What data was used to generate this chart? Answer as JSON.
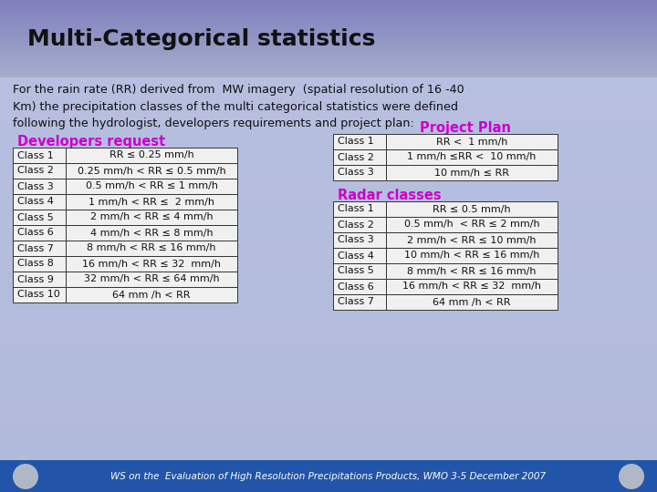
{
  "title": "Multi-Categorical statistics",
  "body_text": "For the rain rate (RR) derived from  MW imagery  (spatial resolution of 16 -40\nKm) the precipitation classes of the multi categorical statistics were defined\nfollowing the hydrologist, developers requirements and project plan:",
  "footer_text": "WS on the  Evaluation of High Resolution Precipitations Products, WMO 3-5 December 2007",
  "dev_request_title": "Developers request",
  "project_plan_title": "Project Plan",
  "radar_classes_title": "Radar classes",
  "dev_rows": [
    [
      "Class 1",
      "RR ≤ 0.25 mm/h"
    ],
    [
      "Class 2",
      "0.25 mm/h < RR ≤ 0.5 mm/h"
    ],
    [
      "Class 3",
      "0.5 mm/h < RR ≤ 1 mm/h"
    ],
    [
      "Class 4",
      "1 mm/h < RR ≤  2 mm/h"
    ],
    [
      "Class 5",
      "2 mm/h < RR ≤ 4 mm/h"
    ],
    [
      "Class 6",
      "4 mm/h < RR ≤ 8 mm/h"
    ],
    [
      "Class 7",
      "8 mm/h < RR ≤ 16 mm/h"
    ],
    [
      "Class 8",
      "16 mm/h < RR ≤ 32  mm/h"
    ],
    [
      "Class 9",
      "32 mm/h < RR ≤ 64 mm/h"
    ],
    [
      "Class 10",
      "64 mm /h < RR"
    ]
  ],
  "project_rows": [
    [
      "Class 1",
      "RR <  1 mm/h"
    ],
    [
      "Class 2",
      "1 mm/h ≤RR <  10 mm/h"
    ],
    [
      "Class 3",
      "10 mm/h ≤ RR"
    ]
  ],
  "radar_rows": [
    [
      "Class 1",
      "RR ≤ 0.5 mm/h"
    ],
    [
      "Class 2",
      "0.5 mm/h  < RR ≤ 2 mm/h"
    ],
    [
      "Class 3",
      "2 mm/h < RR ≤ 10 mm/h"
    ],
    [
      "Class 4",
      "10 mm/h < RR ≤ 16 mm/h"
    ],
    [
      "Class 5",
      "8 mm/h < RR ≤ 16 mm/h"
    ],
    [
      "Class 6",
      "16 mm/h < RR ≤ 32  mm/h"
    ],
    [
      "Class 7",
      "64 mm /h < RR"
    ]
  ],
  "accent_color": "#cc00cc",
  "footer_bg": "#2255aa",
  "footer_text_color": "#ffffff",
  "table_border_color": "#333333",
  "table_bg": "#f0f0f0",
  "title_bg_color": "#8899cc",
  "body_bg_color": "#aabbdd"
}
